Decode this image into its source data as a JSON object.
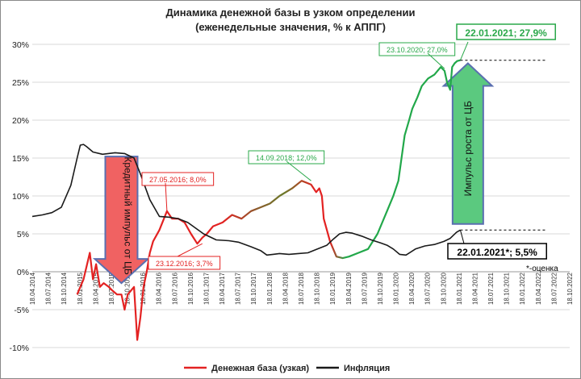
{
  "chart_data": {
    "type": "line",
    "title": "Динамика денежной базы в узком определении",
    "subtitle": "(еженедельные значения, % к АППГ)",
    "ylim": [
      -10,
      30
    ],
    "yticks": [
      "-10%",
      "-5%",
      "0%",
      "5%",
      "10%",
      "15%",
      "20%",
      "25%",
      "30%"
    ],
    "xlim": [
      2014.29,
      2022.79
    ],
    "xtick_labels": [
      "18.04.2014",
      "18.07.2014",
      "18.10.2014",
      "18.01.2015",
      "18.04.2015",
      "18.07.2015",
      "18.10.2015",
      "18.01.2016",
      "18.04.2016",
      "18.07.2016",
      "18.10.2016",
      "18.01.2017",
      "18.04.2017",
      "18.07.2017",
      "18.10.2017",
      "18.01.2018",
      "18.04.2018",
      "18.07.2018",
      "18.10.2018",
      "18.01.2019",
      "18.04.2019",
      "18.07.2019",
      "18.10.2019",
      "18.01.2020",
      "18.04.2020",
      "18.07.2020",
      "18.10.2020",
      "18.01.2021",
      "18.04.2021",
      "18.07.2021",
      "18.10.2021",
      "18.01.2022",
      "18.04.2022",
      "18.07.2022",
      "18.10.2022"
    ],
    "series": [
      {
        "name": "Денежная база (узкая)",
        "color": "#e32222",
        "x": [
          2015.0,
          2015.1,
          2015.2,
          2015.25,
          2015.3,
          2015.36,
          2015.42,
          2015.5,
          2015.56,
          2015.63,
          2015.7,
          2015.75,
          2015.8,
          2015.9,
          2015.95,
          2016.0,
          2016.05,
          2016.1,
          2016.15,
          2016.2,
          2016.3,
          2016.42,
          2016.5,
          2016.6,
          2016.7,
          2016.8,
          2016.9,
          2016.98,
          2017.05,
          2017.15,
          2017.3,
          2017.45,
          2017.6,
          2017.75,
          2017.9,
          2018.05,
          2018.2,
          2018.4,
          2018.55,
          2018.7,
          2018.78,
          2018.83,
          2018.87,
          2018.9,
          2018.95,
          2019.0,
          2019.1,
          2019.2,
          2019.3,
          2019.45,
          2019.6,
          2019.75,
          2019.9,
          2020.0,
          2020.08,
          2020.18,
          2020.25,
          2020.3,
          2020.38,
          2020.45,
          2020.55,
          2020.65,
          2020.75,
          2020.81,
          2020.85,
          2020.9,
          2020.93,
          2020.97,
          2021.01,
          2021.06
        ],
        "y": [
          -3,
          -1,
          2.5,
          -1,
          1,
          -2,
          -1.5,
          -2,
          -2.5,
          -3,
          -3,
          -5,
          -3,
          -2,
          -9,
          -6,
          -2,
          0,
          2.5,
          4,
          5.5,
          8,
          7,
          7,
          6.5,
          5,
          3.7,
          4.5,
          5,
          6,
          6.5,
          7.5,
          7,
          8,
          8.5,
          9,
          10,
          11,
          12,
          11.5,
          10.5,
          11,
          10,
          7,
          5.5,
          4,
          2,
          1.8,
          2,
          2.5,
          3,
          5,
          8,
          10,
          12,
          18,
          20,
          21.5,
          23,
          24.5,
          25.5,
          26,
          27,
          26.5,
          25,
          24,
          27,
          27.5,
          27.8,
          27.9
        ]
      },
      {
        "name": "Инфляция",
        "color": "#1a1a1a",
        "x": [
          2014.29,
          2014.45,
          2014.6,
          2014.75,
          2014.9,
          2015.0,
          2015.05,
          2015.1,
          2015.15,
          2015.25,
          2015.4,
          2015.6,
          2015.75,
          2015.9,
          2016.0,
          2016.15,
          2016.3,
          2016.45,
          2016.6,
          2016.75,
          2016.9,
          2017.0,
          2017.2,
          2017.4,
          2017.55,
          2017.75,
          2017.9,
          2018.0,
          2018.1,
          2018.2,
          2018.35,
          2018.5,
          2018.65,
          2018.8,
          2018.95,
          2019.05,
          2019.15,
          2019.25,
          2019.35,
          2019.5,
          2019.65,
          2019.8,
          2019.9,
          2020.0,
          2020.1,
          2020.2,
          2020.35,
          2020.5,
          2020.65,
          2020.8,
          2020.9,
          2021.0,
          2021.06
        ],
        "y": [
          7.3,
          7.5,
          7.8,
          8.5,
          11.4,
          15,
          16.7,
          16.8,
          16.5,
          15.8,
          15.5,
          15.7,
          15.6,
          15,
          12.9,
          9.5,
          7.3,
          7.2,
          7,
          6.5,
          5.6,
          5,
          4.2,
          4.1,
          3.9,
          3.3,
          2.8,
          2.2,
          2.3,
          2.4,
          2.3,
          2.4,
          2.5,
          3,
          3.5,
          4.3,
          5,
          5.2,
          5.1,
          4.7,
          4.2,
          3.8,
          3.5,
          3,
          2.3,
          2.2,
          3,
          3.4,
          3.6,
          4,
          4.4,
          5.2,
          5.5
        ]
      }
    ],
    "annotations": [
      {
        "text": "27.05.2016; 8,0%",
        "color": "#e32222"
      },
      {
        "text": "23.12.2016; 3,7%",
        "color": "#e32222"
      },
      {
        "text": "14.09.2018; 12,0%",
        "color": "#2aa84a"
      },
      {
        "text": "23.10.2020; 27,0%",
        "color": "#2aa84a"
      },
      {
        "text": "22.01.2021; 27,9%",
        "color": "#2aa84a"
      },
      {
        "text": "22.01.2021*; 5,5%",
        "color": "#000000"
      },
      {
        "text": "*-оценка",
        "color": "#000000"
      }
    ],
    "arrows": [
      {
        "text": "Кредитный импульс от ЦБ",
        "color": "#f06262",
        "direction": "down"
      },
      {
        "text": "Импульс роста от ЦБ",
        "color": "#5bc97f",
        "direction": "up"
      }
    ],
    "legend": {
      "position": "bottom",
      "entries": [
        "Денежная база (узкая)",
        "Инфляция"
      ]
    }
  },
  "colors": {
    "red": "#e32222",
    "green": "#22a84a",
    "olive": "#8b5a2b",
    "black": "#1a1a1a"
  }
}
